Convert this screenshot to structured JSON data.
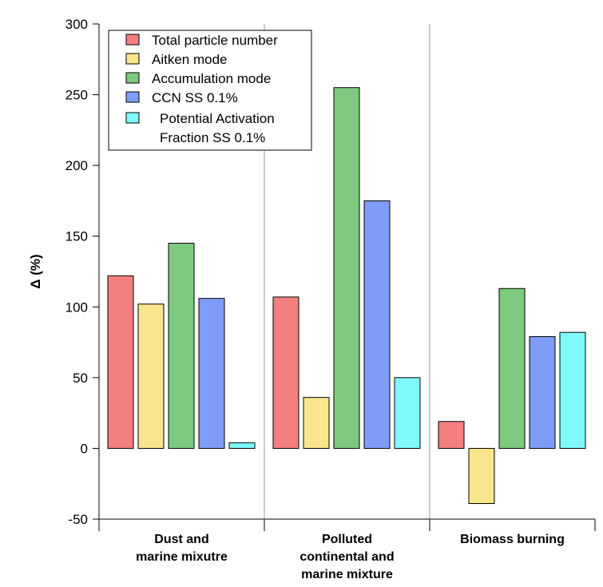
{
  "chart_data": {
    "type": "bar",
    "title": "",
    "xlabel": "",
    "ylabel": "Δ (%)",
    "ylim": [
      -50,
      300
    ],
    "yticks": [
      -50,
      0,
      50,
      100,
      150,
      200,
      250,
      300
    ],
    "grid": false,
    "legend_position": "top-left",
    "categories": [
      [
        "Dust and",
        "marine mixutre"
      ],
      [
        "Polluted",
        "continental and",
        "marine mixture"
      ],
      [
        "Biomass burning"
      ]
    ],
    "series": [
      {
        "name": [
          "Total particle number"
        ],
        "color": "#f47f7f",
        "values": [
          122,
          107,
          19
        ]
      },
      {
        "name": [
          "Aitken mode"
        ],
        "color": "#f9e68c",
        "values": [
          102,
          36,
          -39
        ]
      },
      {
        "name": [
          "Accumulation mode"
        ],
        "color": "#7fc97f",
        "values": [
          145,
          255,
          113
        ]
      },
      {
        "name": [
          "CCN SS 0.1%"
        ],
        "color": "#7f9cf9",
        "values": [
          106,
          175,
          79
        ]
      },
      {
        "name": [
          "Potential Activation",
          "Fraction SS 0.1%"
        ],
        "color": "#7ff9f9",
        "values": [
          4,
          50,
          82
        ]
      }
    ]
  }
}
